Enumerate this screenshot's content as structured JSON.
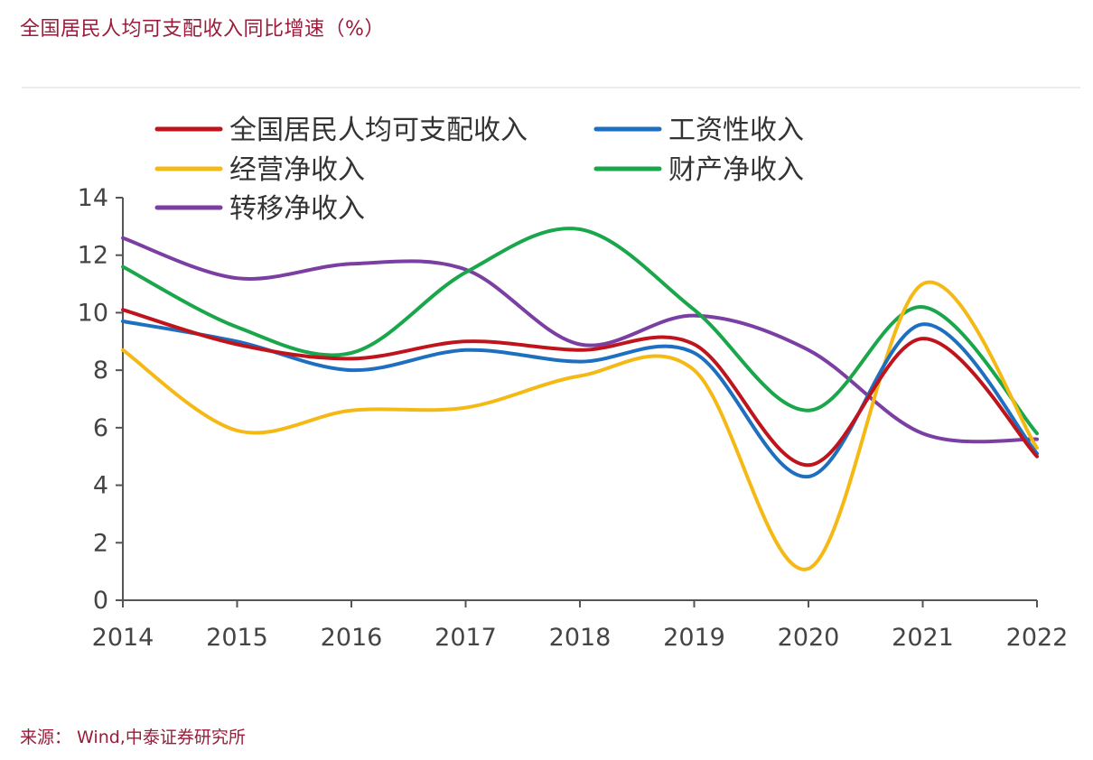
{
  "header": {
    "title": "全国居民人均可支配收入同比增速（%）"
  },
  "footer": {
    "source": "来源： Wind,中泰证券研究所"
  },
  "chart_data": {
    "type": "line",
    "title": "全国居民人均可支配收入同比增速（%）",
    "xlabel": "",
    "ylabel": "",
    "x": [
      "2014",
      "2015",
      "2016",
      "2017",
      "2018",
      "2019",
      "2020",
      "2021",
      "2022"
    ],
    "ylim": [
      0,
      14
    ],
    "yticks": [
      0,
      2,
      4,
      6,
      8,
      10,
      12,
      14
    ],
    "grid": false,
    "legend_position": "top-left",
    "series": [
      {
        "name": "全国居民人均可支配收入",
        "color": "#c0141c",
        "values": [
          10.1,
          8.9,
          8.4,
          9.0,
          8.7,
          8.9,
          4.7,
          9.1,
          5.0
        ]
      },
      {
        "name": "工资性收入",
        "color": "#1f6fc0",
        "values": [
          9.7,
          9.0,
          8.0,
          8.7,
          8.3,
          8.6,
          4.3,
          9.6,
          5.1
        ]
      },
      {
        "name": "经营净收入",
        "color": "#f5b915",
        "values": [
          8.7,
          5.9,
          6.6,
          6.7,
          7.8,
          8.0,
          1.1,
          11.0,
          5.3
        ]
      },
      {
        "name": "财产净收入",
        "color": "#1aa64a",
        "values": [
          11.6,
          9.5,
          8.6,
          11.4,
          12.9,
          10.1,
          6.6,
          10.2,
          5.8
        ]
      },
      {
        "name": "转移净收入",
        "color": "#7b3fa3",
        "values": [
          12.6,
          11.2,
          11.7,
          11.5,
          8.9,
          9.9,
          8.7,
          5.8,
          5.6
        ]
      }
    ]
  }
}
